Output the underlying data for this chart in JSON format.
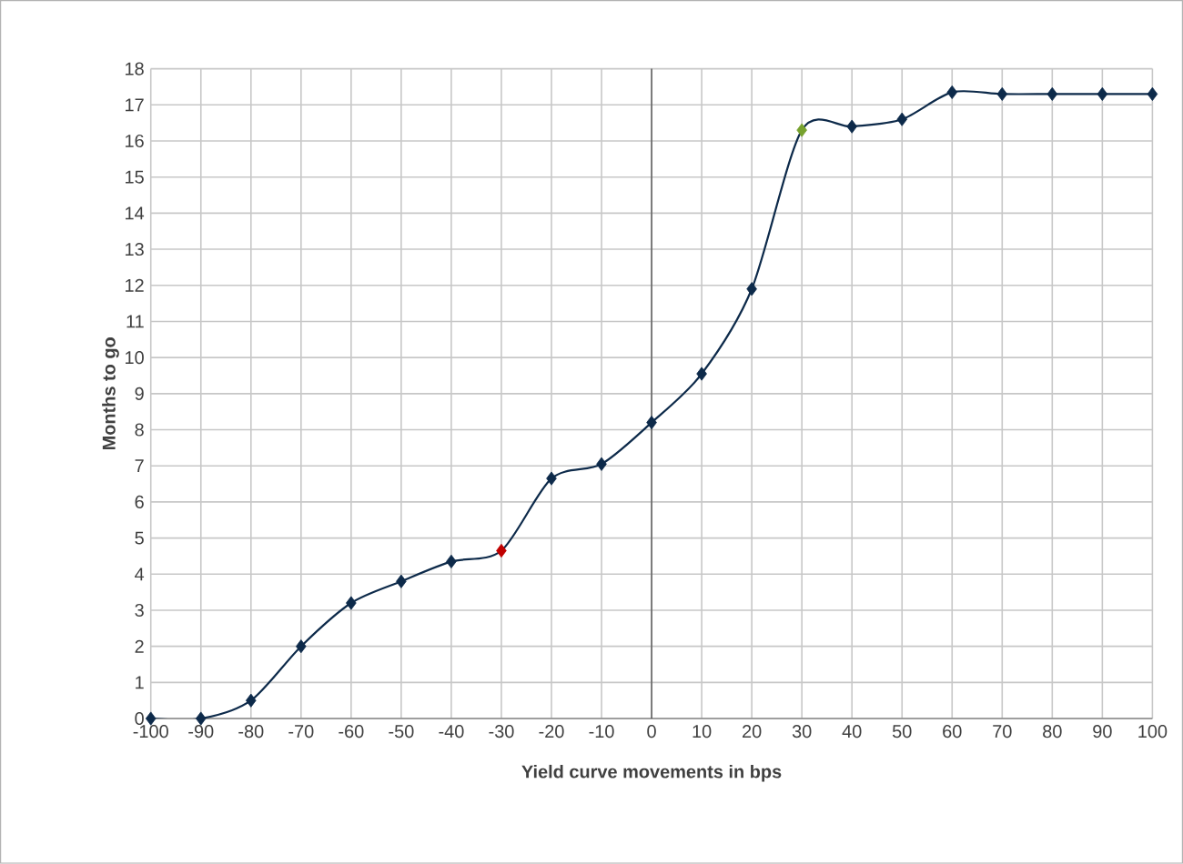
{
  "chart_data": {
    "type": "line",
    "xlabel": "Yield curve movements in bps",
    "ylabel": "Months  to go",
    "x": [
      -100,
      -90,
      -80,
      -70,
      -60,
      -50,
      -40,
      -30,
      -20,
      -10,
      0,
      10,
      20,
      30,
      40,
      50,
      60,
      70,
      80,
      90,
      100
    ],
    "series": [
      {
        "color": "#0d2a4a",
        "values": [
          0,
          0,
          0.5,
          2,
          3.2,
          3.8,
          4.35,
          4.65,
          6.65,
          7.05,
          8.2,
          9.55,
          11.9,
          16.3,
          16.4,
          16.6,
          17.35,
          17.3,
          17.3,
          17.3,
          17.3
        ],
        "colors": [
          "#0d2a4a",
          "#0d2a4a",
          "#0d2a4a",
          "#0d2a4a",
          "#0d2a4a",
          "#0d2a4a",
          "#0d2a4a",
          "#c00000",
          "#0d2a4a",
          "#0d2a4a",
          "#0d2a4a",
          "#0d2a4a",
          "#0d2a4a",
          "#77a22f",
          "#0d2a4a",
          "#0d2a4a",
          "#0d2a4a",
          "#0d2a4a",
          "#0d2a4a",
          "#0d2a4a",
          "#0d2a4a"
        ]
      }
    ],
    "xlim": [
      -100,
      100
    ],
    "ylim": [
      0,
      18
    ],
    "xticks": [
      -100,
      -90,
      -80,
      -70,
      -60,
      -50,
      -40,
      -30,
      -20,
      -10,
      0,
      10,
      20,
      30,
      40,
      50,
      60,
      70,
      80,
      90,
      100
    ],
    "yticks": [
      0,
      1,
      2,
      3,
      4,
      5,
      6,
      7,
      8,
      9,
      10,
      11,
      12,
      13,
      14,
      15,
      16,
      17,
      18
    ],
    "grid": true,
    "marker": "diamond",
    "line_style": "solid"
  }
}
